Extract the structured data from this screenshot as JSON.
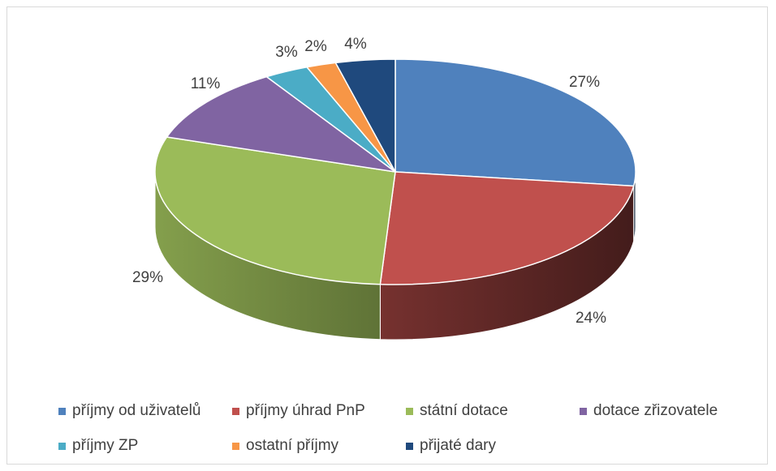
{
  "chart_data": {
    "type": "pie",
    "style": "3d",
    "slices": [
      {
        "label": "příjmy od uživatelů",
        "value": 27,
        "text": "27%",
        "color": "#4f81bd"
      },
      {
        "label": "příjmy úhrad PnP",
        "value": 24,
        "text": "24%",
        "color": "#c0504d"
      },
      {
        "label": "státní dotace",
        "value": 29,
        "text": "29%",
        "color": "#9bbb59"
      },
      {
        "label": "dotace zřizovatele",
        "value": 11,
        "text": "11%",
        "color": "#8064a2"
      },
      {
        "label": "příjmy ZP",
        "value": 3,
        "text": "3%",
        "color": "#4bacc6"
      },
      {
        "label": "ostatní příjmy",
        "value": 2,
        "text": "2%",
        "color": "#f79646"
      },
      {
        "label": "přijaté dary",
        "value": 4,
        "text": "4%",
        "color": "#1f497d"
      }
    ],
    "legend_position": "bottom"
  }
}
